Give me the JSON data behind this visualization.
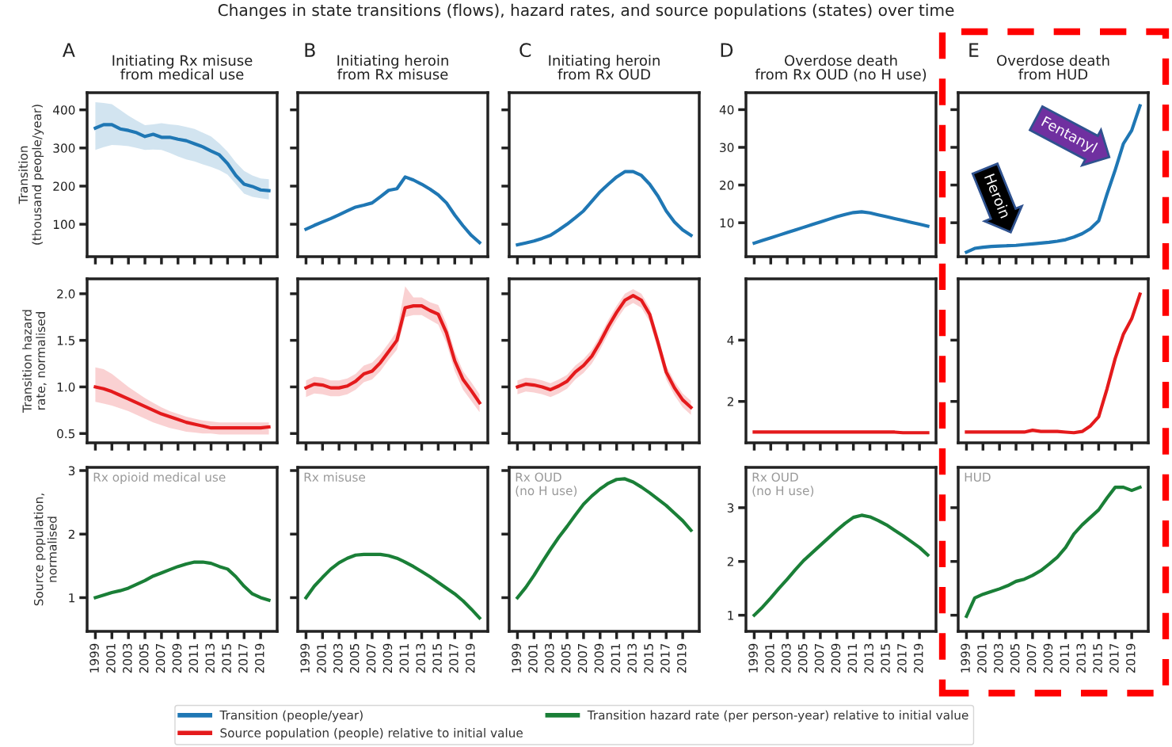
{
  "chart_data": [
    {
      "type": "other",
      "title": "Changes in state transitions (flows), hazard rates, and source populations (states) over time"
    },
    {
      "type": "line",
      "title": "Initiating Rx misuse\nfrom medical use",
      "annotations": [
        "A"
      ],
      "ylabel": "Transition\n(thousand people/year)",
      "x": [
        1999,
        2000,
        2001,
        2002,
        2003,
        2004,
        2005,
        2006,
        2007,
        2008,
        2009,
        2010,
        2011,
        2012,
        2013,
        2014,
        2015,
        2016,
        2017,
        2018,
        2019,
        2020
      ],
      "xlim": [
        1998,
        2021
      ],
      "xticks": [
        1999,
        2001,
        2003,
        2005,
        2007,
        2009,
        2011,
        2013,
        2015,
        2017,
        2019
      ],
      "ylim": [
        15,
        445
      ],
      "yticks": [
        100,
        200,
        300,
        400
      ],
      "tick_labels": "y",
      "legend": "bottom",
      "series": [
        {
          "name": "Transition (people/year)",
          "color": "#1f77b4",
          "values": [
            352,
            361,
            361,
            350,
            346,
            340,
            330,
            336,
            328,
            328,
            323,
            319,
            311,
            303,
            292,
            282,
            259,
            228,
            205,
            199,
            190,
            188
          ],
          "upper": [
            420,
            418,
            415,
            400,
            385,
            372,
            360,
            362,
            365,
            362,
            360,
            355,
            350,
            340,
            330,
            312,
            290,
            262,
            240,
            228,
            220,
            218
          ],
          "lower": [
            295,
            302,
            308,
            307,
            305,
            300,
            295,
            296,
            295,
            287,
            278,
            270,
            265,
            257,
            250,
            242,
            230,
            205,
            180,
            172,
            168,
            165
          ]
        }
      ]
    },
    {
      "type": "line",
      "title": "Initiating heroin\nfrom Rx misuse",
      "annotations": [
        "B"
      ],
      "x": [
        1999,
        2000,
        2001,
        2002,
        2003,
        2004,
        2005,
        2006,
        2007,
        2008,
        2009,
        2010,
        2011,
        2012,
        2013,
        2014,
        2015,
        2016,
        2017,
        2018,
        2019,
        2020
      ],
      "xlim": [
        1998,
        2021
      ],
      "xticks": [
        1999,
        2001,
        2003,
        2005,
        2007,
        2009,
        2011,
        2013,
        2015,
        2017,
        2019
      ],
      "ylim": [
        15,
        445
      ],
      "yticks": [
        100,
        200,
        300,
        400
      ],
      "tick_labels": false,
      "series": [
        {
          "color": "#1f77b4",
          "values": [
            87,
            97,
            106,
            115,
            125,
            135,
            145,
            150,
            156,
            172,
            189,
            193,
            224,
            216,
            205,
            192,
            177,
            156,
            124,
            96,
            71,
            52
          ]
        }
      ]
    },
    {
      "type": "line",
      "title": "Initiating heroin\nfrom Rx OUD",
      "annotations": [
        "C"
      ],
      "x": [
        1999,
        2000,
        2001,
        2002,
        2003,
        2004,
        2005,
        2006,
        2007,
        2008,
        2009,
        2010,
        2011,
        2012,
        2013,
        2014,
        2015,
        2016,
        2017,
        2018,
        2019,
        2020
      ],
      "xlim": [
        1998,
        2021
      ],
      "xticks": [
        1999,
        2001,
        2003,
        2005,
        2007,
        2009,
        2011,
        2013,
        2015,
        2017,
        2019
      ],
      "ylim": [
        15,
        445
      ],
      "yticks": [
        100,
        200,
        300,
        400
      ],
      "tick_labels": false,
      "series": [
        {
          "color": "#1f77b4",
          "values": [
            46,
            51,
            56,
            63,
            71,
            85,
            100,
            117,
            135,
            160,
            185,
            205,
            224,
            238,
            238,
            228,
            205,
            174,
            135,
            106,
            85,
            71
          ]
        }
      ]
    },
    {
      "type": "line",
      "title": "Overdose death\nfrom Rx OUD (no H use)",
      "annotations": [
        "D"
      ],
      "x": [
        1999,
        2000,
        2001,
        2002,
        2003,
        2004,
        2005,
        2006,
        2007,
        2008,
        2009,
        2010,
        2011,
        2012,
        2013,
        2014,
        2015,
        2016,
        2017,
        2018,
        2019,
        2020
      ],
      "xlim": [
        1998,
        2021
      ],
      "xticks": [
        1999,
        2001,
        2003,
        2005,
        2007,
        2009,
        2011,
        2013,
        2015,
        2017,
        2019
      ],
      "ylim": [
        1,
        44.5
      ],
      "yticks": [
        10,
        20,
        30,
        40
      ],
      "tick_labels": "y",
      "series": [
        {
          "color": "#1f77b4",
          "values": [
            4.6,
            5.3,
            6.0,
            6.7,
            7.4,
            8.1,
            8.8,
            9.5,
            10.2,
            10.9,
            11.6,
            12.2,
            12.7,
            12.9,
            12.6,
            12.1,
            11.6,
            11.1,
            10.6,
            10.1,
            9.6,
            9.1
          ]
        }
      ]
    },
    {
      "type": "line",
      "title": "Overdose death\nfrom HUD",
      "annotations": [
        "E",
        {
          "text": "Heroin",
          "x": 2005,
          "y": 4
        },
        {
          "text": "Fentanyl",
          "x": 2017.5,
          "y": 26
        }
      ],
      "x": [
        1999,
        2000,
        2001,
        2002,
        2003,
        2004,
        2005,
        2006,
        2007,
        2008,
        2009,
        2010,
        2011,
        2012,
        2013,
        2014,
        2015,
        2016,
        2017,
        2018,
        2019,
        2020
      ],
      "xlim": [
        1998,
        2021
      ],
      "xticks": [
        1999,
        2001,
        2003,
        2005,
        2007,
        2009,
        2011,
        2013,
        2015,
        2017,
        2019
      ],
      "ylim": [
        1,
        44.5
      ],
      "yticks": [
        10,
        20,
        30,
        40
      ],
      "tick_labels": false,
      "series": [
        {
          "color": "#1f77b4",
          "values": [
            2.2,
            3.2,
            3.5,
            3.7,
            3.8,
            3.9,
            4.0,
            4.2,
            4.4,
            4.6,
            4.8,
            5.1,
            5.5,
            6.2,
            7.1,
            8.4,
            10.5,
            17.5,
            24,
            31,
            34.5,
            41
          ]
        }
      ]
    },
    {
      "type": "line",
      "ylabel": "Transition hazard\nrate, normalised",
      "x": [
        1999,
        2000,
        2001,
        2002,
        2003,
        2004,
        2005,
        2006,
        2007,
        2008,
        2009,
        2010,
        2011,
        2012,
        2013,
        2014,
        2015,
        2016,
        2017,
        2018,
        2019,
        2020
      ],
      "xlim": [
        1998,
        2021
      ],
      "xticks": [
        1999,
        2001,
        2003,
        2005,
        2007,
        2009,
        2011,
        2013,
        2015,
        2017,
        2019
      ],
      "ylim": [
        0.4,
        2.16
      ],
      "yticks": [
        {
          "value": 0.5,
          "label": "0.5"
        },
        {
          "value": 1.0,
          "label": "1.0"
        },
        {
          "value": 1.5,
          "label": "1.5"
        },
        {
          "value": 2.0,
          "label": "2.0"
        }
      ],
      "tick_labels": "y",
      "legend": "bottom",
      "series": [
        {
          "name": "Source population (people) relative to initial value",
          "color": "#e41a1c",
          "values": [
            1.0,
            0.98,
            0.95,
            0.91,
            0.87,
            0.83,
            0.79,
            0.75,
            0.71,
            0.68,
            0.65,
            0.62,
            0.6,
            0.58,
            0.56,
            0.56,
            0.56,
            0.56,
            0.56,
            0.56,
            0.56,
            0.57
          ],
          "upper": [
            1.21,
            1.19,
            1.14,
            1.07,
            1.0,
            0.94,
            0.88,
            0.83,
            0.78,
            0.74,
            0.71,
            0.68,
            0.66,
            0.64,
            0.63,
            0.62,
            0.62,
            0.62,
            0.62,
            0.62,
            0.62,
            0.62
          ],
          "lower": [
            0.84,
            0.82,
            0.8,
            0.77,
            0.74,
            0.7,
            0.66,
            0.62,
            0.59,
            0.56,
            0.54,
            0.52,
            0.51,
            0.5,
            0.5,
            0.49,
            0.49,
            0.49,
            0.49,
            0.49,
            0.49,
            0.49
          ]
        }
      ]
    },
    {
      "type": "line",
      "x": [
        1999,
        2000,
        2001,
        2002,
        2003,
        2004,
        2005,
        2006,
        2007,
        2008,
        2009,
        2010,
        2011,
        2012,
        2013,
        2014,
        2015,
        2016,
        2017,
        2018,
        2019,
        2020
      ],
      "xlim": [
        1998,
        2021
      ],
      "xticks": [
        1999,
        2001,
        2003,
        2005,
        2007,
        2009,
        2011,
        2013,
        2015,
        2017,
        2019
      ],
      "ylim": [
        0.4,
        2.16
      ],
      "yticks": [
        0.5,
        1.0,
        1.5,
        2.0
      ],
      "tick_labels": false,
      "series": [
        {
          "color": "#e41a1c",
          "values": [
            0.99,
            1.03,
            1.02,
            0.99,
            0.99,
            1.01,
            1.06,
            1.14,
            1.17,
            1.26,
            1.38,
            1.5,
            1.85,
            1.87,
            1.87,
            1.82,
            1.78,
            1.58,
            1.28,
            1.08,
            0.96,
            0.83
          ],
          "upper": [
            1.07,
            1.11,
            1.1,
            1.07,
            1.07,
            1.09,
            1.14,
            1.23,
            1.26,
            1.35,
            1.47,
            1.6,
            2.08,
            1.96,
            1.96,
            1.91,
            1.88,
            1.68,
            1.38,
            1.17,
            1.05,
            0.92
          ],
          "lower": [
            0.89,
            0.93,
            0.92,
            0.9,
            0.9,
            0.92,
            0.97,
            1.05,
            1.08,
            1.17,
            1.29,
            1.4,
            1.75,
            1.77,
            1.77,
            1.72,
            1.67,
            1.47,
            1.17,
            0.97,
            0.85,
            0.73
          ]
        }
      ]
    },
    {
      "type": "line",
      "x": [
        1999,
        2000,
        2001,
        2002,
        2003,
        2004,
        2005,
        2006,
        2007,
        2008,
        2009,
        2010,
        2011,
        2012,
        2013,
        2014,
        2015,
        2016,
        2017,
        2018,
        2019,
        2020
      ],
      "xlim": [
        1998,
        2021
      ],
      "xticks": [
        1999,
        2001,
        2003,
        2005,
        2007,
        2009,
        2011,
        2013,
        2015,
        2017,
        2019
      ],
      "ylim": [
        0.4,
        2.16
      ],
      "yticks": [
        0.5,
        1.0,
        1.5,
        2.0
      ],
      "tick_labels": false,
      "series": [
        {
          "color": "#e41a1c",
          "values": [
            1.0,
            1.03,
            1.02,
            1.0,
            0.97,
            1.01,
            1.06,
            1.16,
            1.23,
            1.33,
            1.48,
            1.65,
            1.8,
            1.93,
            1.98,
            1.93,
            1.78,
            1.48,
            1.16,
            0.99,
            0.86,
            0.78
          ],
          "upper": [
            1.07,
            1.1,
            1.09,
            1.07,
            1.04,
            1.08,
            1.13,
            1.23,
            1.3,
            1.4,
            1.55,
            1.72,
            1.87,
            2.0,
            2.05,
            2.0,
            1.85,
            1.55,
            1.23,
            1.06,
            0.93,
            0.85
          ],
          "lower": [
            0.92,
            0.95,
            0.94,
            0.92,
            0.89,
            0.93,
            0.98,
            1.08,
            1.15,
            1.25,
            1.4,
            1.57,
            1.72,
            1.85,
            1.9,
            1.85,
            1.7,
            1.4,
            1.08,
            0.91,
            0.78,
            0.7
          ]
        }
      ]
    },
    {
      "type": "line",
      "x": [
        1999,
        2000,
        2001,
        2002,
        2003,
        2004,
        2005,
        2006,
        2007,
        2008,
        2009,
        2010,
        2011,
        2012,
        2013,
        2014,
        2015,
        2016,
        2017,
        2018,
        2019,
        2020
      ],
      "xlim": [
        1998,
        2021
      ],
      "xticks": [
        1999,
        2001,
        2003,
        2005,
        2007,
        2009,
        2011,
        2013,
        2015,
        2017,
        2019
      ],
      "ylim": [
        0.65,
        6.0
      ],
      "yticks": [
        2,
        4
      ],
      "tick_labels": "y",
      "series": [
        {
          "color": "#e41a1c",
          "values": [
            1.0,
            1.0,
            1.0,
            1.0,
            1.0,
            1.0,
            1.0,
            1.0,
            1.0,
            1.0,
            1.0,
            1.0,
            1.0,
            1.0,
            1.0,
            1.0,
            1.0,
            1.0,
            0.98,
            0.98,
            0.98,
            0.98
          ]
        }
      ]
    },
    {
      "type": "line",
      "x": [
        1999,
        2000,
        2001,
        2002,
        2003,
        2004,
        2005,
        2006,
        2007,
        2008,
        2009,
        2010,
        2011,
        2012,
        2013,
        2014,
        2015,
        2016,
        2017,
        2018,
        2019,
        2020
      ],
      "xlim": [
        1998,
        2021
      ],
      "xticks": [
        1999,
        2001,
        2003,
        2005,
        2007,
        2009,
        2011,
        2013,
        2015,
        2017,
        2019
      ],
      "ylim": [
        0.65,
        6.0
      ],
      "yticks": [
        2,
        4
      ],
      "tick_labels": false,
      "series": [
        {
          "color": "#e41a1c",
          "values": [
            1.0,
            1.0,
            1.0,
            1.0,
            1.0,
            1.0,
            1.0,
            1.0,
            1.06,
            1.02,
            1.02,
            1.02,
            1.0,
            0.98,
            1.02,
            1.2,
            1.5,
            2.4,
            3.4,
            4.2,
            4.7,
            5.5
          ]
        }
      ]
    },
    {
      "type": "line",
      "ylabel": "Source population,\nnormalised",
      "annotations": [
        "Rx opioid medical use"
      ],
      "x": [
        1999,
        2000,
        2001,
        2002,
        2003,
        2004,
        2005,
        2006,
        2007,
        2008,
        2009,
        2010,
        2011,
        2012,
        2013,
        2014,
        2015,
        2016,
        2017,
        2018,
        2019,
        2020
      ],
      "xlim": [
        1998,
        2021
      ],
      "xticks": [
        1999,
        2001,
        2003,
        2005,
        2007,
        2009,
        2011,
        2013,
        2015,
        2017,
        2019
      ],
      "ylim": [
        0.47,
        3.05
      ],
      "yticks": [
        1,
        2,
        3
      ],
      "legend": "bottom",
      "series": [
        {
          "name": "Transition hazard rate (per person-year) relative to initial value",
          "color": "#1a7f37",
          "values": [
            1.0,
            1.04,
            1.08,
            1.11,
            1.15,
            1.21,
            1.27,
            1.34,
            1.39,
            1.44,
            1.49,
            1.53,
            1.56,
            1.56,
            1.54,
            1.49,
            1.45,
            1.33,
            1.18,
            1.06,
            1.0,
            0.96
          ]
        }
      ]
    },
    {
      "type": "line",
      "annotations": [
        "Rx misuse"
      ],
      "x": [
        1999,
        2000,
        2001,
        2002,
        2003,
        2004,
        2005,
        2006,
        2007,
        2008,
        2009,
        2010,
        2011,
        2012,
        2013,
        2014,
        2015,
        2016,
        2017,
        2018,
        2019,
        2020
      ],
      "xlim": [
        1998,
        2021
      ],
      "xticks": [
        1999,
        2001,
        2003,
        2005,
        2007,
        2009,
        2011,
        2013,
        2015,
        2017,
        2019
      ],
      "ylim": [
        0.47,
        3.05
      ],
      "yticks": [
        1,
        2,
        3
      ],
      "tick_labels": "x",
      "series": [
        {
          "color": "#1a7f37",
          "values": [
            1.0,
            1.18,
            1.32,
            1.45,
            1.55,
            1.62,
            1.67,
            1.68,
            1.68,
            1.68,
            1.66,
            1.62,
            1.56,
            1.49,
            1.41,
            1.33,
            1.24,
            1.15,
            1.06,
            0.95,
            0.82,
            0.68
          ]
        }
      ]
    },
    {
      "type": "line",
      "annotations": [
        "Rx OUD\n(no H use)"
      ],
      "x": [
        1999,
        2000,
        2001,
        2002,
        2003,
        2004,
        2005,
        2006,
        2007,
        2008,
        2009,
        2010,
        2011,
        2012,
        2013,
        2014,
        2015,
        2016,
        2017,
        2018,
        2019,
        2020
      ],
      "xlim": [
        1998,
        2021
      ],
      "xticks": [
        1999,
        2001,
        2003,
        2005,
        2007,
        2009,
        2011,
        2013,
        2015,
        2017,
        2019
      ],
      "ylim": [
        0.47,
        3.05
      ],
      "yticks": [
        1,
        2,
        3
      ],
      "tick_labels": "x",
      "series": [
        {
          "color": "#1a7f37",
          "values": [
            1.0,
            1.16,
            1.35,
            1.56,
            1.76,
            1.95,
            2.12,
            2.3,
            2.47,
            2.6,
            2.71,
            2.8,
            2.86,
            2.87,
            2.82,
            2.74,
            2.65,
            2.55,
            2.45,
            2.33,
            2.21,
            2.06
          ]
        }
      ]
    },
    {
      "type": "line",
      "annotations": [
        "Rx OUD\n(no H use)"
      ],
      "x": [
        1999,
        2000,
        2001,
        2002,
        2003,
        2004,
        2005,
        2006,
        2007,
        2008,
        2009,
        2010,
        2011,
        2012,
        2013,
        2014,
        2015,
        2016,
        2017,
        2018,
        2019,
        2020
      ],
      "xlim": [
        1998,
        2021
      ],
      "xticks": [
        1999,
        2001,
        2003,
        2005,
        2007,
        2009,
        2011,
        2013,
        2015,
        2017,
        2019
      ],
      "ylim": [
        0.7,
        3.75
      ],
      "yticks": [
        1,
        2,
        3
      ],
      "series": [
        {
          "color": "#1a7f37",
          "values": [
            1.0,
            1.15,
            1.32,
            1.5,
            1.67,
            1.85,
            2.02,
            2.16,
            2.3,
            2.44,
            2.58,
            2.71,
            2.82,
            2.86,
            2.83,
            2.76,
            2.68,
            2.58,
            2.48,
            2.37,
            2.26,
            2.12
          ]
        }
      ]
    },
    {
      "type": "line",
      "annotations": [
        "HUD"
      ],
      "x": [
        1999,
        2000,
        2001,
        2002,
        2003,
        2004,
        2005,
        2006,
        2007,
        2008,
        2009,
        2010,
        2011,
        2012,
        2013,
        2014,
        2015,
        2016,
        2017,
        2018,
        2019,
        2020
      ],
      "xlim": [
        1998,
        2021
      ],
      "xticks": [
        1999,
        2001,
        2003,
        2005,
        2007,
        2009,
        2011,
        2013,
        2015,
        2017,
        2019
      ],
      "ylim": [
        0.7,
        3.75
      ],
      "yticks": [
        1,
        2,
        3
      ],
      "tick_labels": "x",
      "series": [
        {
          "color": "#1a7f37",
          "values": [
            0.98,
            1.32,
            1.39,
            1.44,
            1.49,
            1.55,
            1.63,
            1.67,
            1.74,
            1.83,
            1.95,
            2.08,
            2.26,
            2.51,
            2.68,
            2.82,
            2.96,
            3.18,
            3.38,
            3.38,
            3.32,
            3.38
          ]
        }
      ]
    }
  ]
}
